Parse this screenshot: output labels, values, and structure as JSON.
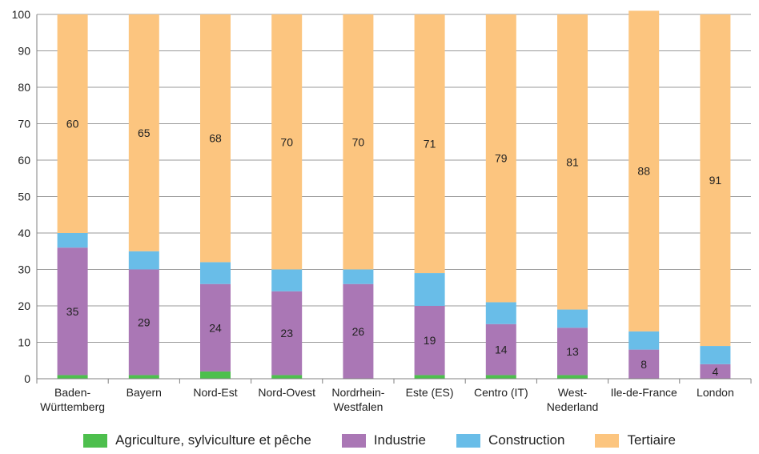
{
  "chart_data": {
    "type": "bar",
    "stacked": true,
    "categories": [
      "Baden-\nWürttemberg",
      "Bayern",
      "Nord-Est",
      "Nord-Ovest",
      "Nordrhein-\nWestfalen",
      "Este (ES)",
      "Centro (IT)",
      "West-\nNederland",
      "Ile-de-France",
      "London"
    ],
    "series": [
      {
        "name": "Agriculture, sylviculture et pêche",
        "color": "#4dbf4d",
        "values": [
          1,
          1,
          2,
          1,
          0,
          1,
          1,
          1,
          0,
          0
        ]
      },
      {
        "name": "Industrie",
        "color": "#aa77b5",
        "values": [
          35,
          29,
          24,
          23,
          26,
          19,
          14,
          13,
          8,
          4
        ]
      },
      {
        "name": "Construction",
        "color": "#69bde8",
        "values": [
          4,
          5,
          6,
          6,
          4,
          9,
          6,
          5,
          5,
          5
        ]
      },
      {
        "name": "Tertiaire",
        "color": "#fcc57f",
        "values": [
          60,
          65,
          68,
          70,
          70,
          71,
          79,
          81,
          88,
          91
        ]
      }
    ],
    "data_labels": {
      "Industrie": [
        "35",
        "29",
        "24",
        "23",
        "26",
        "19",
        "14",
        "13",
        "8",
        "4"
      ],
      "Tertiaire": [
        "60",
        "65",
        "68",
        "70",
        "70",
        "71",
        "79",
        "81",
        "88",
        "91"
      ]
    },
    "ylim": [
      0,
      100
    ],
    "yticks": [
      0,
      10,
      20,
      30,
      40,
      50,
      60,
      70,
      80,
      90,
      100
    ],
    "grid": true,
    "legend_position": "bottom"
  }
}
